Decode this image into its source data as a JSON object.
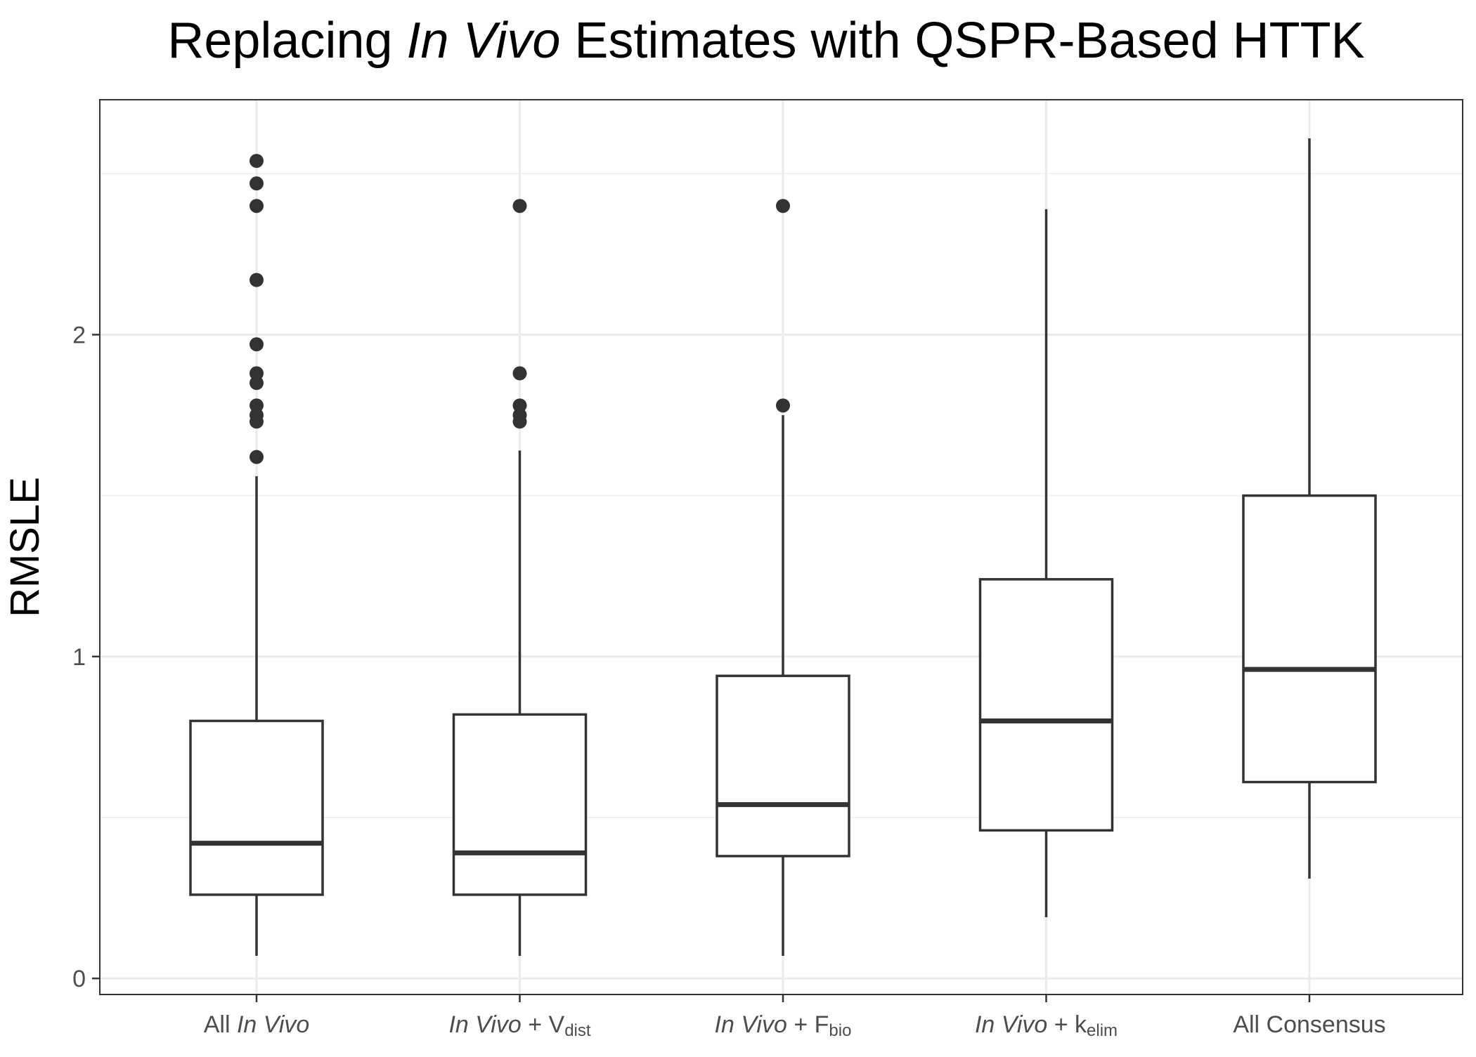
{
  "chart_data": {
    "type": "boxplot",
    "title": {
      "parts": [
        {
          "text": "Replacing ",
          "italic": false
        },
        {
          "text": "In Vivo",
          "italic": true
        },
        {
          "text": " Estimates with QSPR-Based HTTK",
          "italic": false
        }
      ]
    },
    "xlabel": "",
    "ylabel": "RMSLE",
    "ylim": [
      -0.05,
      2.73
    ],
    "y_ticks": [
      0,
      1,
      2
    ],
    "y_tick_labels": [
      "0",
      "1",
      "2"
    ],
    "grid": true,
    "categories": [
      {
        "label_parts": [
          {
            "text": "All ",
            "italic": false
          },
          {
            "text": "In Vivo",
            "italic": true
          }
        ]
      },
      {
        "label_parts": [
          {
            "text": "In Vivo",
            "italic": true
          },
          {
            "text": " + V",
            "italic": false
          },
          {
            "text": "dist",
            "italic": false,
            "sub": true
          }
        ]
      },
      {
        "label_parts": [
          {
            "text": "In Vivo",
            "italic": true
          },
          {
            "text": " + F",
            "italic": false
          },
          {
            "text": "bio",
            "italic": false,
            "sub": true
          }
        ]
      },
      {
        "label_parts": [
          {
            "text": "In Vivo",
            "italic": true
          },
          {
            "text": " + k",
            "italic": false
          },
          {
            "text": "elim",
            "italic": false,
            "sub": true
          }
        ]
      },
      {
        "label_parts": [
          {
            "text": "All Consensus",
            "italic": false
          }
        ]
      }
    ],
    "boxes": [
      {
        "whisker_low": 0.07,
        "q1": 0.26,
        "median": 0.42,
        "q3": 0.8,
        "whisker_high": 1.56,
        "outliers": [
          1.62,
          1.73,
          1.75,
          1.78,
          1.85,
          1.88,
          1.97,
          2.17,
          2.4,
          2.47,
          2.54
        ]
      },
      {
        "whisker_low": 0.07,
        "q1": 0.26,
        "median": 0.39,
        "q3": 0.82,
        "whisker_high": 1.64,
        "outliers": [
          1.73,
          1.75,
          1.78,
          1.88,
          2.4
        ]
      },
      {
        "whisker_low": 0.07,
        "q1": 0.38,
        "median": 0.54,
        "q3": 0.94,
        "whisker_high": 1.75,
        "outliers": [
          1.78,
          2.4
        ]
      },
      {
        "whisker_low": 0.19,
        "q1": 0.46,
        "median": 0.8,
        "q3": 1.24,
        "whisker_high": 2.39,
        "outliers": []
      },
      {
        "whisker_low": 0.31,
        "q1": 0.61,
        "median": 0.96,
        "q3": 1.5,
        "whisker_high": 2.61,
        "outliers": []
      }
    ]
  }
}
